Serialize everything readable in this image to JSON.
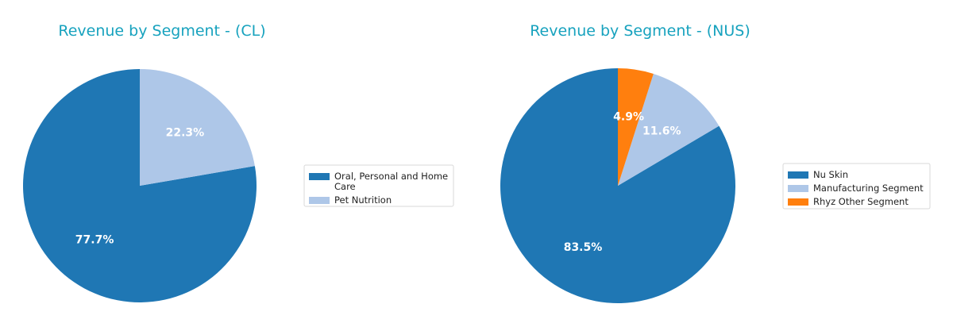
{
  "chart_data": [
    {
      "type": "pie",
      "title": "Revenue by Segment - (CL)",
      "categories": [
        "Oral, Personal and Home Care",
        "Pet Nutrition"
      ],
      "legend_lines": [
        [
          "Oral, Personal and Home",
          "Care"
        ],
        [
          "Pet Nutrition"
        ]
      ],
      "values": [
        77.7,
        22.3
      ],
      "labels": [
        "77.7%",
        "22.3%"
      ],
      "colors": [
        "#1f77b4",
        "#aec7e8"
      ],
      "start_angle": "top (12 o'clock)",
      "direction": "counterclockwise",
      "legend_position": "right"
    },
    {
      "type": "pie",
      "title": "Revenue by Segment - (NUS)",
      "categories": [
        "Nu Skin",
        "Manufacturing Segment",
        "Rhyz Other Segment"
      ],
      "legend_lines": [
        [
          "Nu Skin"
        ],
        [
          "Manufacturing Segment"
        ],
        [
          "Rhyz Other Segment"
        ]
      ],
      "values": [
        83.5,
        11.6,
        4.9
      ],
      "labels": [
        "83.5%",
        "11.6%",
        "4.9%"
      ],
      "colors": [
        "#1f77b4",
        "#aec7e8",
        "#ff7f0e"
      ],
      "start_angle": "top (12 o'clock)",
      "direction": "counterclockwise",
      "legend_position": "right"
    }
  ]
}
